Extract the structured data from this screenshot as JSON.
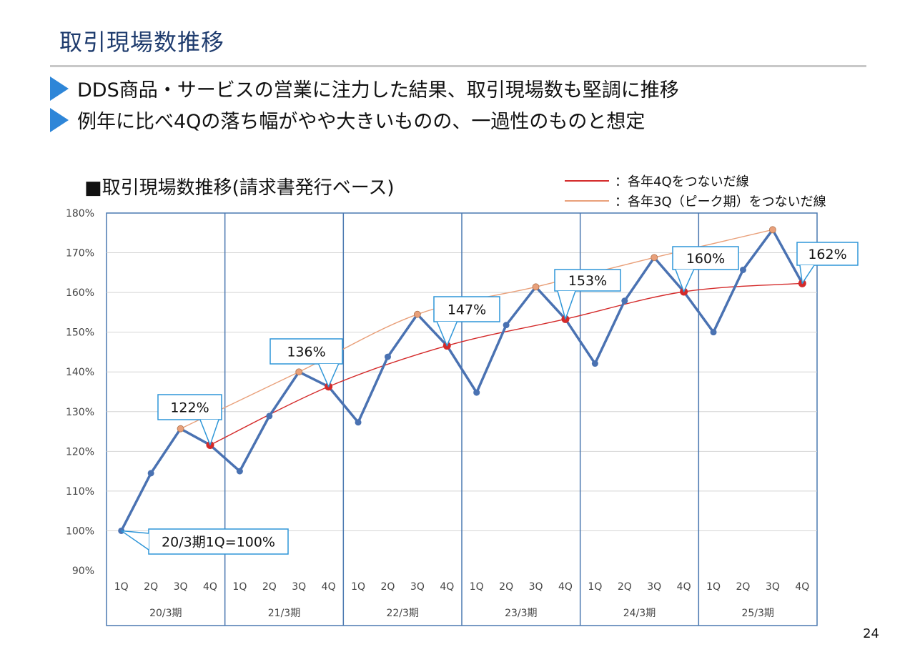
{
  "page": {
    "title": "取引現場数推移",
    "bullets": [
      "DDS商品・サービスの営業に注力した結果、取引現場数も堅調に推移",
      "例年に比べ4Qの落ち幅がやや大きいものの、一過性のものと想定"
    ],
    "page_number": "24"
  },
  "legend": {
    "q4_line": "：各年4Qをつないだ線",
    "q3_line": "：各年3Q（ピーク期）をつないだ線"
  },
  "chart_data": {
    "type": "line",
    "title": "■取引現場数推移(請求書発行ベース)",
    "xlabel": "",
    "ylabel": "",
    "ylim": [
      90,
      180
    ],
    "yticks": [
      "90%",
      "100%",
      "110%",
      "120%",
      "130%",
      "140%",
      "150%",
      "160%",
      "170%",
      "180%"
    ],
    "grid": true,
    "quarters": [
      "1Q",
      "2Q",
      "3Q",
      "4Q"
    ],
    "years": [
      "20/3期",
      "21/3期",
      "22/3期",
      "23/3期",
      "24/3期",
      "25/3期"
    ],
    "series": [
      {
        "values": [
          100.0,
          114.5,
          125.7,
          121.6,
          115.0,
          128.9,
          140.0,
          136.3,
          127.3,
          143.8,
          154.5,
          146.6,
          134.8,
          151.8,
          161.4,
          153.3,
          142.1,
          157.9,
          168.8,
          160.2,
          150.0,
          165.7,
          175.8,
          162.3
        ],
        "color": "#4a72b2"
      }
    ],
    "trend_4q": {
      "indices": [
        3,
        7,
        11,
        15,
        19,
        23
      ],
      "color": "#d42a2a"
    },
    "trend_3q": {
      "indices": [
        2,
        6,
        10,
        14,
        18,
        22
      ],
      "color": "#e9a07a"
    },
    "annotations": [
      {
        "label": "20/3期1Q=100%",
        "index": 0
      },
      {
        "label": "122%",
        "index": 3
      },
      {
        "label": "136%",
        "index": 7
      },
      {
        "label": "147%",
        "index": 11
      },
      {
        "label": "153%",
        "index": 15
      },
      {
        "label": "160%",
        "index": 19
      },
      {
        "label": "162%",
        "index": 23
      }
    ]
  }
}
